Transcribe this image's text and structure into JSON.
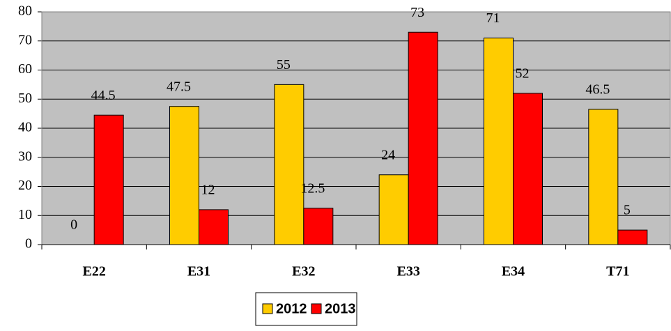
{
  "chart_data": {
    "type": "bar",
    "categories": [
      "E22",
      "E31",
      "E32",
      "E33",
      "E34",
      "T71"
    ],
    "series": [
      {
        "name": "2012",
        "color": "#ffcc00",
        "values": [
          0,
          47.5,
          55,
          24,
          71,
          46.5
        ]
      },
      {
        "name": "2013",
        "color": "#ff0000",
        "values": [
          44.5,
          12,
          12.5,
          73,
          52,
          5
        ]
      }
    ],
    "ylim": [
      0,
      80
    ],
    "yticks": [
      0,
      10,
      20,
      30,
      40,
      50,
      60,
      70,
      80
    ],
    "grid": true,
    "legend": "bottom"
  }
}
